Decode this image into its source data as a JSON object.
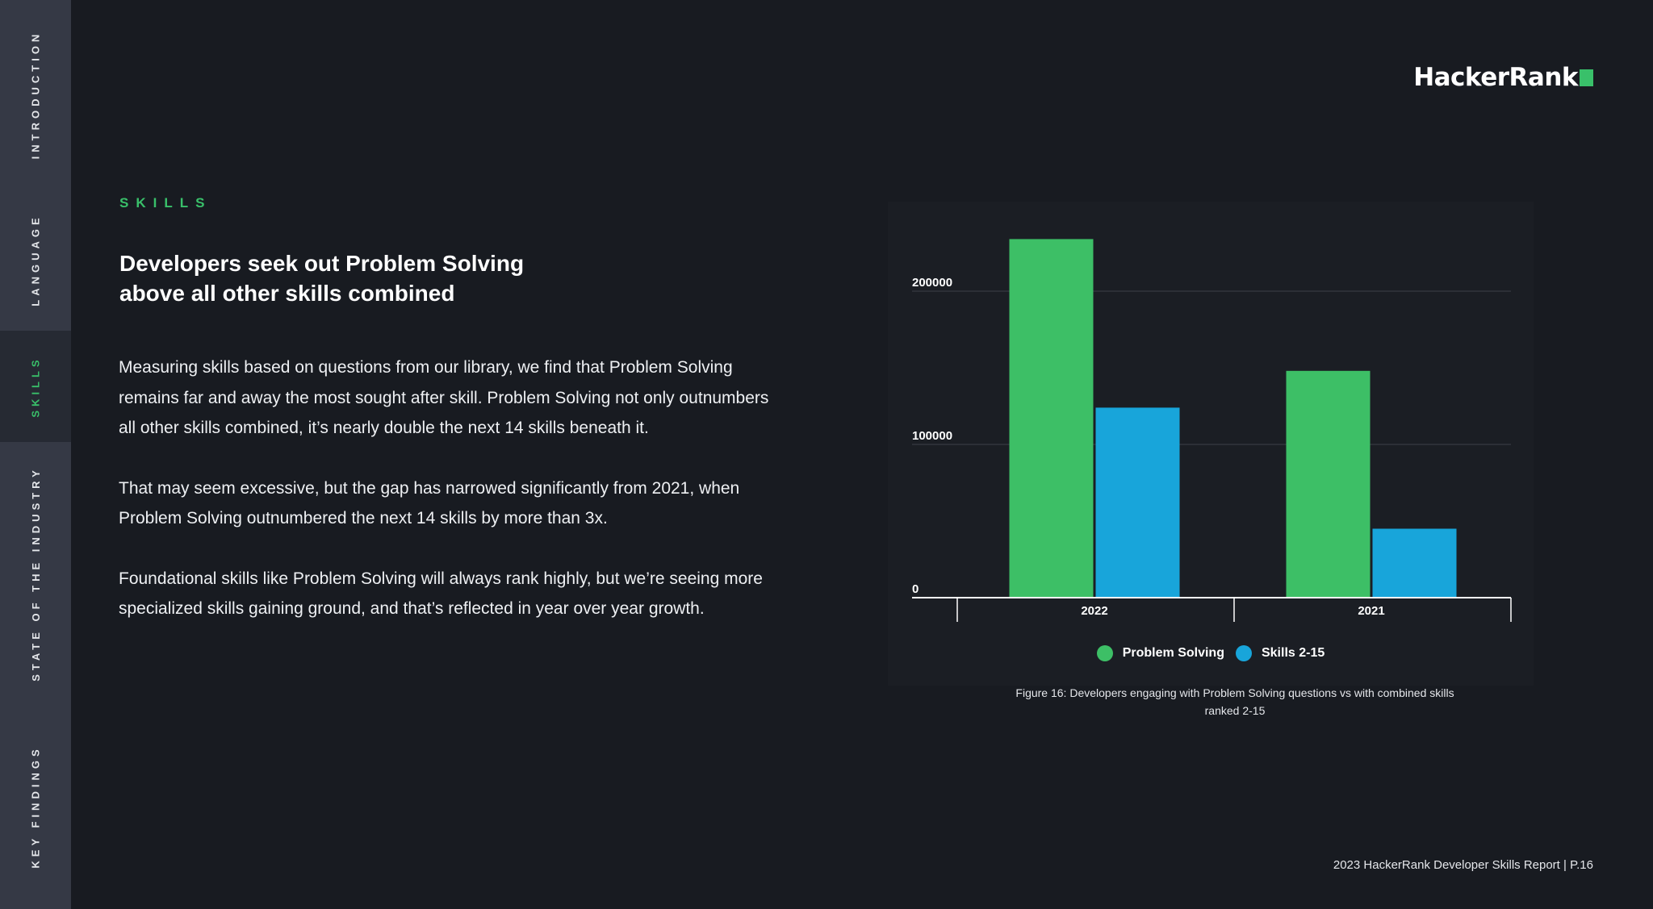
{
  "sidebar": {
    "items": [
      {
        "label": "INTRODUCTION",
        "active": false
      },
      {
        "label": "LANGUAGE",
        "active": false
      },
      {
        "label": "SKILLS",
        "active": true
      },
      {
        "label": "STATE OF THE INDUSTRY",
        "active": false
      },
      {
        "label": "KEY FINDINGS",
        "active": false
      }
    ]
  },
  "logo": {
    "text": "HackerRank",
    "accent_color": "#39c06a"
  },
  "section": {
    "eyebrow": "SKILLS",
    "headline": "Developers seek out Problem Solving above all other skills combined",
    "paragraphs": [
      "Measuring skills based on questions from our library, we find that Problem Solving remains far and away the most sought after skill. Problem Solving not only outnumbers all other skills combined, it’s nearly double the next 14 skills beneath it.",
      "That may seem excessive, but the gap has narrowed significantly from 2021, when Problem Solving outnumbered the next 14 skills by more than 3x.",
      "Foundational skills like Problem Solving will always rank highly, but we’re seeing more specialized skills gaining ground, and that’s reflected in year over year growth."
    ]
  },
  "chart_data": {
    "type": "bar",
    "title": "",
    "xlabel": "",
    "ylabel": "",
    "categories": [
      "2022",
      "2021"
    ],
    "series": [
      {
        "name": "Problem Solving",
        "color": "#3dbf66",
        "values": [
          234000,
          148000
        ]
      },
      {
        "name": "Skills 2-15",
        "color": "#18a5da",
        "values": [
          124000,
          45000
        ]
      }
    ],
    "ylim": [
      0,
      240000
    ],
    "yticks": [
      "0",
      "100000",
      "200000"
    ],
    "ytick_values": [
      0,
      100000,
      200000
    ],
    "grid": true,
    "legend_position": "bottom"
  },
  "caption": "Figure 16: Developers engaging with Problem Solving questions vs with combined skills ranked 2-15",
  "footer": "2023 HackerRank Developer Skills Report | P.16"
}
